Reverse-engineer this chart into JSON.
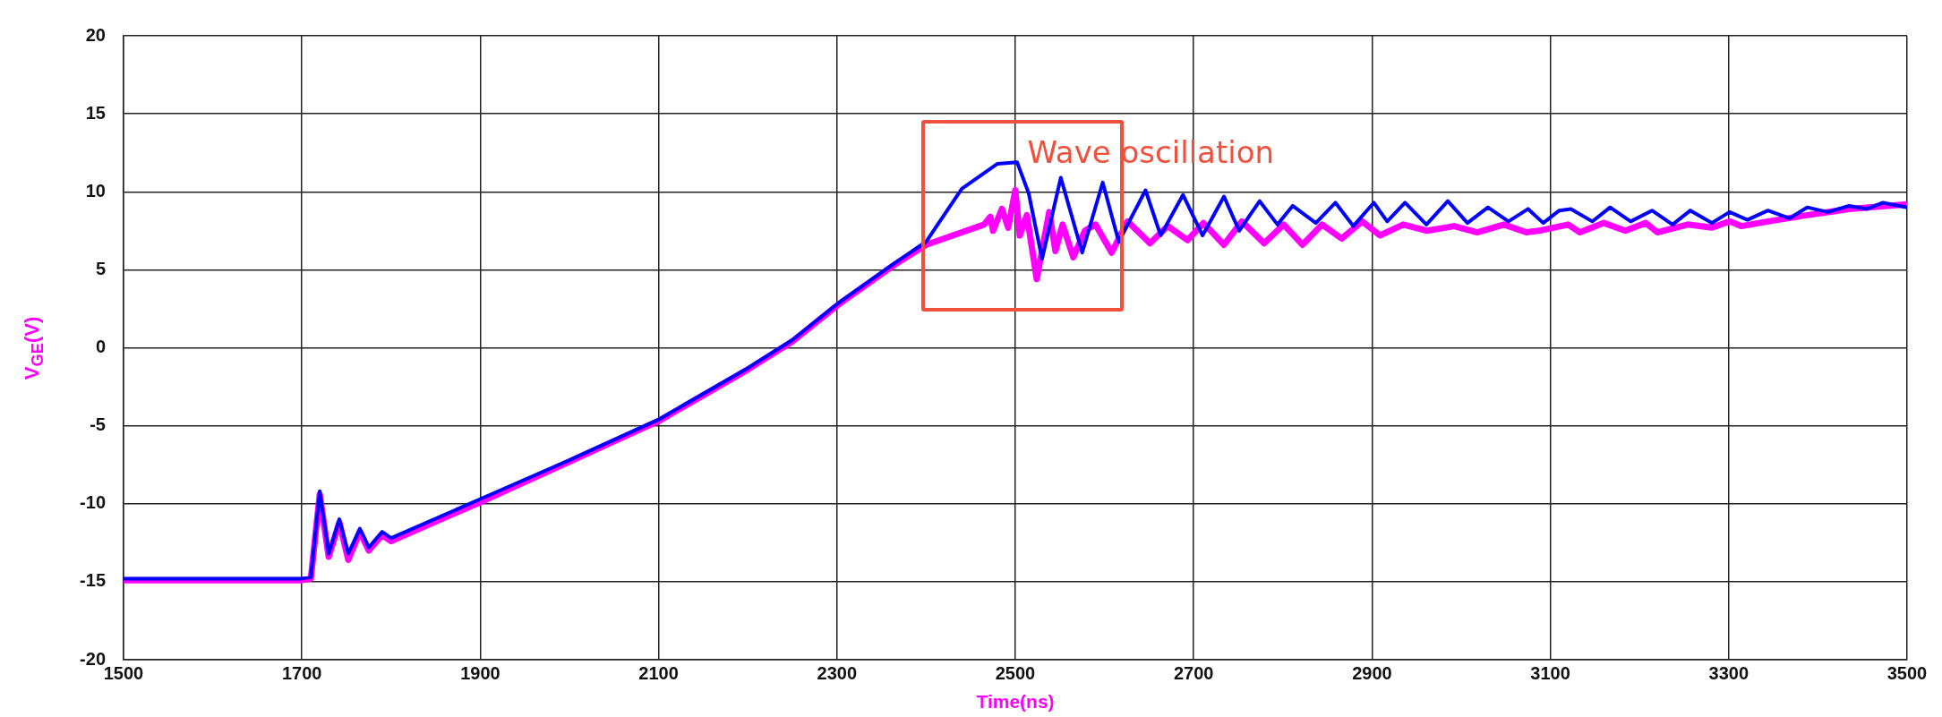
{
  "chart_data": {
    "type": "line",
    "xlabel": "Time(ns)",
    "ylabel": "V$_{GE}$(V)",
    "xlim": [
      1500,
      3500
    ],
    "xticks": [
      1500,
      1700,
      1900,
      2100,
      2300,
      2500,
      2700,
      2900,
      3100,
      3300,
      3500
    ],
    "ylim": [
      -20,
      20
    ],
    "yticks": [
      -20,
      -15,
      -10,
      -5,
      0,
      5,
      10,
      15,
      20
    ],
    "grid": true,
    "legend": false,
    "marker": "none",
    "line_style": "solid",
    "annotations": [
      "Wave oscillation"
    ],
    "series": [
      {
        "color": "#0000ff",
        "x": [
          1500,
          1600,
          1700,
          1710,
          1720,
          1730,
          1742,
          1752,
          1765,
          1775,
          1790,
          1800,
          1900,
          2000,
          2100,
          2200,
          2250,
          2300,
          2364,
          2400,
          2440,
          2480,
          2502,
          2515,
          2530,
          2551,
          2575,
          2598,
          2616,
          2646,
          2663,
          2688,
          2710,
          2734,
          2751,
          2774,
          2794,
          2811,
          2837,
          2859,
          2879,
          2902,
          2917,
          2937,
          2961,
          2985,
          3007,
          3030,
          3053,
          3075,
          3092,
          3110,
          3123,
          3147,
          3167,
          3190,
          3214,
          3237,
          3257,
          3281,
          3301,
          3321,
          3344,
          3368,
          3388,
          3411,
          3435,
          3455,
          3473,
          3500
        ],
        "values": [
          -14.8,
          -14.8,
          -14.8,
          -14.7,
          -9.2,
          -13.2,
          -11,
          -13.2,
          -11.6,
          -12.8,
          -11.8,
          -12.2,
          -9.7,
          -7.2,
          -4.6,
          -1.3,
          0.5,
          2.8,
          5.4,
          6.8,
          10.2,
          11.8,
          11.9,
          9.9,
          5.7,
          10.9,
          6.1,
          10.6,
          6.8,
          10.1,
          7.2,
          9.8,
          7.2,
          9.7,
          7.5,
          9.4,
          7.9,
          9.1,
          8,
          9.3,
          7.8,
          9.3,
          8.1,
          9.3,
          7.9,
          9.4,
          8,
          9,
          8.1,
          8.9,
          8,
          8.8,
          8.9,
          8.1,
          9,
          8.1,
          8.8,
          7.9,
          8.8,
          8,
          8.7,
          8.2,
          8.8,
          8.3,
          9,
          8.7,
          9.1,
          8.9,
          9.3,
          9
        ]
      },
      {
        "color": "#ff00ff",
        "x": [
          1500,
          1600,
          1700,
          1710,
          1720,
          1730,
          1742,
          1752,
          1765,
          1775,
          1790,
          1800,
          1900,
          2000,
          2100,
          2200,
          2250,
          2300,
          2364,
          2400,
          2440,
          2465,
          2472,
          2475,
          2485,
          2492,
          2500,
          2505,
          2513,
          2524,
          2538,
          2545,
          2553,
          2565,
          2578,
          2590,
          2608,
          2626,
          2651,
          2671,
          2693,
          2711,
          2734,
          2754,
          2779,
          2801,
          2822,
          2844,
          2866,
          2889,
          2909,
          2935,
          2962,
          2992,
          3018,
          3048,
          3073,
          3087,
          3120,
          3133,
          3160,
          3184,
          3207,
          3220,
          3254,
          3281,
          3301,
          3314,
          3344,
          3388,
          3435,
          3500
        ],
        "values": [
          -14.9,
          -14.9,
          -14.9,
          -14.8,
          -9.4,
          -13.4,
          -11.2,
          -13.6,
          -11.8,
          -13,
          -12,
          -12.4,
          -9.9,
          -7.3,
          -4.7,
          -1.4,
          0.4,
          2.7,
          5.3,
          6.6,
          7.4,
          7.9,
          8.4,
          7.5,
          8.9,
          7.7,
          10.1,
          7.2,
          8.5,
          4.4,
          8.7,
          6.2,
          7.9,
          5.8,
          7.5,
          7.9,
          6.1,
          8.1,
          6.7,
          7.8,
          6.9,
          8,
          6.6,
          8.1,
          6.7,
          7.9,
          6.6,
          7.9,
          7,
          8.1,
          7.2,
          7.9,
          7.5,
          7.8,
          7.4,
          7.9,
          7.4,
          7.5,
          7.9,
          7.4,
          8,
          7.5,
          8,
          7.4,
          7.9,
          7.7,
          8.1,
          7.8,
          8.1,
          8.5,
          8.9,
          9.2
        ]
      }
    ]
  }
}
